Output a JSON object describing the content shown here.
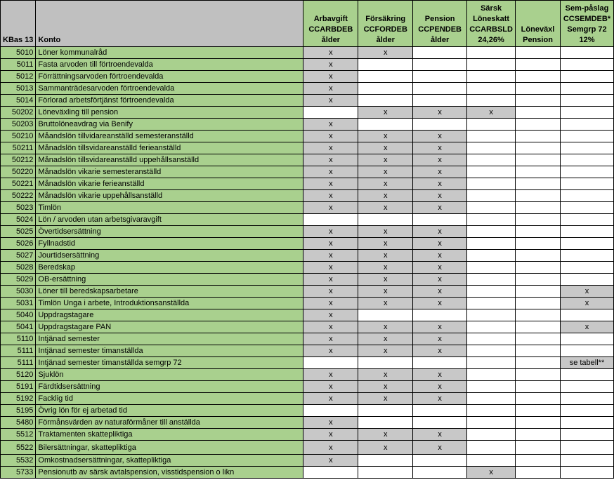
{
  "colors": {
    "green": "#a9d08e",
    "grey": "#c8c8c8",
    "header_grey": "#c0c0c0"
  },
  "header": {
    "kbas": "KBas 13",
    "konto": "Konto",
    "columns": [
      [
        "Arbavgift",
        "CCARBDEB",
        "ålder"
      ],
      [
        "Försäkring",
        "CCFORDEB",
        "ålder"
      ],
      [
        "Pension",
        "CCPENDEB",
        "ålder"
      ],
      [
        "Särsk",
        "Löneskatt",
        "CCARBSLD",
        "24,26%"
      ],
      [
        "Löneväxl",
        "Pension"
      ],
      [
        "Sem-påslag",
        "CCSEMDEB*",
        "Semgrp 72",
        "12%"
      ]
    ]
  },
  "rows": [
    {
      "code": "5010",
      "konto": "Löner kommunalråd",
      "marks": [
        "x",
        "x",
        "",
        "",
        "",
        ""
      ]
    },
    {
      "code": "5011",
      "konto": "Fasta arvoden till förtroendevalda",
      "marks": [
        "x",
        "",
        "",
        "",
        "",
        ""
      ]
    },
    {
      "code": "5012",
      "konto": "Förrättningsarvoden förtroendevalda",
      "marks": [
        "x",
        "",
        "",
        "",
        "",
        ""
      ]
    },
    {
      "code": "5013",
      "konto": "Sammanträdesarvoden förtroendevalda",
      "marks": [
        "x",
        "",
        "",
        "",
        "",
        ""
      ]
    },
    {
      "code": "5014",
      "konto": "Förlorad arbetsförtjänst förtroendevalda",
      "marks": [
        "x",
        "",
        "",
        "",
        "",
        ""
      ]
    },
    {
      "code": "50202",
      "konto": "Löneväxling till pension",
      "marks": [
        "",
        "x",
        "x",
        "x",
        "",
        ""
      ]
    },
    {
      "code": "50203",
      "konto": "Bruttolöneavdrag via Benify",
      "marks": [
        "x",
        "",
        "",
        "",
        "",
        ""
      ]
    },
    {
      "code": "50210",
      "konto": "Måandslön tillvidareanställd semesteranställd",
      "marks": [
        "x",
        "x",
        "x",
        "",
        "",
        ""
      ]
    },
    {
      "code": "50211",
      "konto": "Månadslön tillsvidareanställd ferieanställd",
      "marks": [
        "x",
        "x",
        "x",
        "",
        "",
        ""
      ]
    },
    {
      "code": "50212",
      "konto": "Månadslön tillsvidareanställd uppehållsanställd",
      "marks": [
        "x",
        "x",
        "x",
        "",
        "",
        ""
      ]
    },
    {
      "code": "50220",
      "konto": "Månadslön vikarie semesteranställd",
      "marks": [
        "x",
        "x",
        "x",
        "",
        "",
        ""
      ]
    },
    {
      "code": "50221",
      "konto": "Månadslön vikarie ferieanställd",
      "marks": [
        "x",
        "x",
        "x",
        "",
        "",
        ""
      ]
    },
    {
      "code": "50222",
      "konto": "Månadslön vikarie uppehållsanställd",
      "marks": [
        "x",
        "x",
        "x",
        "",
        "",
        ""
      ]
    },
    {
      "code": "5023",
      "konto": "Timlön",
      "marks": [
        "x",
        "x",
        "x",
        "",
        "",
        ""
      ]
    },
    {
      "code": "5024",
      "konto": "Lön / arvoden utan arbetsgivaravgift",
      "marks": [
        "",
        "",
        "",
        "",
        "",
        ""
      ]
    },
    {
      "code": "5025",
      "konto": "Övertidsersättning",
      "marks": [
        "x",
        "x",
        "x",
        "",
        "",
        ""
      ]
    },
    {
      "code": "5026",
      "konto": "Fyllnadstid",
      "marks": [
        "x",
        "x",
        "x",
        "",
        "",
        ""
      ]
    },
    {
      "code": "5027",
      "konto": "Jourtidsersättning",
      "marks": [
        "x",
        "x",
        "x",
        "",
        "",
        ""
      ]
    },
    {
      "code": "5028",
      "konto": "Beredskap",
      "marks": [
        "x",
        "x",
        "x",
        "",
        "",
        ""
      ]
    },
    {
      "code": "5029",
      "konto": "OB-ersättning",
      "marks": [
        "x",
        "x",
        "x",
        "",
        "",
        ""
      ]
    },
    {
      "code": "5030",
      "konto": "Löner till beredskapsarbetare",
      "marks": [
        "x",
        "x",
        "x",
        "",
        "",
        "x"
      ]
    },
    {
      "code": "5031",
      "konto": "Timlön Unga i arbete, Introduktionsanställda",
      "marks": [
        "x",
        "x",
        "x",
        "",
        "",
        "x"
      ]
    },
    {
      "code": "5040",
      "konto": "Uppdragstagare",
      "marks": [
        "x",
        "",
        "",
        "",
        "",
        ""
      ]
    },
    {
      "code": "5041",
      "konto": "Uppdragstagare PAN",
      "marks": [
        "x",
        "x",
        "x",
        "",
        "",
        "x"
      ]
    },
    {
      "code": "5110",
      "konto": "Intjänad semester",
      "marks": [
        "x",
        "x",
        "x",
        "",
        "",
        ""
      ]
    },
    {
      "code": "5111",
      "konto": "Intjänad semester timanställda",
      "marks": [
        "x",
        "x",
        "x",
        "",
        "",
        ""
      ]
    },
    {
      "code": "5111",
      "konto": "Intjänad semester timanställda semgrp 72",
      "marks": [
        "",
        "",
        "",
        "",
        "",
        "se tabell**"
      ]
    },
    {
      "code": "5120",
      "konto": "Sjuklön",
      "marks": [
        "x",
        "x",
        "x",
        "",
        "",
        ""
      ]
    },
    {
      "code": "5191",
      "konto": "Färdtidsersättning",
      "marks": [
        "x",
        "x",
        "x",
        "",
        "",
        ""
      ]
    },
    {
      "code": "5192",
      "konto": "Facklig tid",
      "marks": [
        "x",
        "x",
        "x",
        "",
        "",
        ""
      ]
    },
    {
      "code": "5195",
      "konto": "Övrig lön för ej arbetad tid",
      "marks": [
        "",
        "",
        "",
        "",
        "",
        ""
      ]
    },
    {
      "code": "5480",
      "konto": "Förmånsvärden av naturaförmåner till anställda",
      "marks": [
        "x",
        "",
        "",
        "",
        "",
        ""
      ]
    },
    {
      "code": "5512",
      "konto": "Traktamenten skattepliktiga",
      "marks": [
        "x",
        "x",
        "x",
        "",
        "",
        ""
      ]
    },
    {
      "code": "5522",
      "konto": "Bilersättningar, skattepliktiga",
      "marks": [
        "x",
        "x",
        "x",
        "",
        "",
        ""
      ]
    },
    {
      "code": "5532",
      "konto": "Omkostnadsersättningar, skattepliktiga",
      "marks": [
        "x",
        "",
        "",
        "",
        "",
        ""
      ]
    },
    {
      "code": "5733",
      "konto": "Pensionutb av särsk avtalspension, visstidspension o likn",
      "marks": [
        "",
        "",
        "",
        "x",
        "",
        ""
      ]
    }
  ]
}
